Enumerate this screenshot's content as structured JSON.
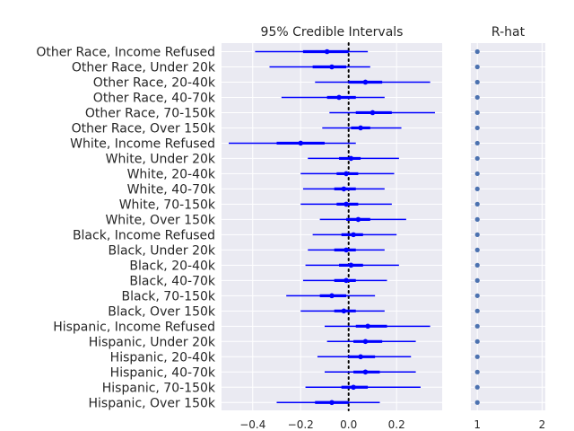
{
  "chart_data": [
    {
      "type": "forest",
      "title": "95% Credible Intervals",
      "xlim": [
        -0.53,
        0.39
      ],
      "xticks": [
        -0.4,
        -0.2,
        0.0,
        0.2
      ],
      "xtick_labels": [
        "−0.4",
        "−0.2",
        "0.0",
        "0.2"
      ],
      "grid": true,
      "reference_line": 0,
      "colors": {
        "interval": "#0000ff",
        "panel_bg": "#eaeaf2",
        "grid": "#ffffff",
        "refline": "#000000"
      },
      "categories": [
        "Other Race, Income Refused",
        "Other Race, Under 20k",
        "Other Race, 20-40k",
        "Other Race, 40-70k",
        "Other Race, 70-150k",
        "Other Race, Over 150k",
        "White, Income Refused",
        "White, Under 20k",
        "White, 20-40k",
        "White, 40-70k",
        "White, 70-150k",
        "White, Over 150k",
        "Black, Income Refused",
        "Black, Under 20k",
        "Black, 20-40k",
        "Black, 40-70k",
        "Black, 70-150k",
        "Black, Over 150k",
        "Hispanic, Income Refused",
        "Hispanic, Under 20k",
        "Hispanic, 20-40k",
        "Hispanic, 40-70k",
        "Hispanic, 70-150k",
        "Hispanic, Over 150k"
      ],
      "intervals": [
        {
          "lo": -0.39,
          "q25": -0.19,
          "mean": -0.09,
          "q75": 0.0,
          "hi": 0.08
        },
        {
          "lo": -0.33,
          "q25": -0.15,
          "mean": -0.07,
          "q75": -0.01,
          "hi": 0.09
        },
        {
          "lo": -0.14,
          "q25": 0.0,
          "mean": 0.07,
          "q75": 0.14,
          "hi": 0.34
        },
        {
          "lo": -0.28,
          "q25": -0.09,
          "mean": -0.04,
          "q75": 0.03,
          "hi": 0.15
        },
        {
          "lo": -0.08,
          "q25": 0.03,
          "mean": 0.1,
          "q75": 0.18,
          "hi": 0.36
        },
        {
          "lo": -0.11,
          "q25": 0.01,
          "mean": 0.05,
          "q75": 0.09,
          "hi": 0.22
        },
        {
          "lo": -0.5,
          "q25": -0.3,
          "mean": -0.2,
          "q75": -0.1,
          "hi": 0.03
        },
        {
          "lo": -0.17,
          "q25": -0.04,
          "mean": 0.01,
          "q75": 0.05,
          "hi": 0.21
        },
        {
          "lo": -0.2,
          "q25": -0.05,
          "mean": -0.01,
          "q75": 0.04,
          "hi": 0.19
        },
        {
          "lo": -0.19,
          "q25": -0.06,
          "mean": -0.02,
          "q75": 0.03,
          "hi": 0.15
        },
        {
          "lo": -0.2,
          "q25": -0.05,
          "mean": -0.01,
          "q75": 0.04,
          "hi": 0.18
        },
        {
          "lo": -0.12,
          "q25": -0.01,
          "mean": 0.04,
          "q75": 0.09,
          "hi": 0.24
        },
        {
          "lo": -0.15,
          "q25": -0.03,
          "mean": 0.02,
          "q75": 0.06,
          "hi": 0.2
        },
        {
          "lo": -0.17,
          "q25": -0.06,
          "mean": -0.01,
          "q75": 0.03,
          "hi": 0.15
        },
        {
          "lo": -0.18,
          "q25": -0.04,
          "mean": 0.01,
          "q75": 0.06,
          "hi": 0.21
        },
        {
          "lo": -0.19,
          "q25": -0.06,
          "mean": -0.01,
          "q75": 0.03,
          "hi": 0.16
        },
        {
          "lo": -0.26,
          "q25": -0.12,
          "mean": -0.07,
          "q75": -0.01,
          "hi": 0.11
        },
        {
          "lo": -0.2,
          "q25": -0.06,
          "mean": -0.02,
          "q75": 0.03,
          "hi": 0.15
        },
        {
          "lo": -0.1,
          "q25": 0.03,
          "mean": 0.08,
          "q75": 0.16,
          "hi": 0.34
        },
        {
          "lo": -0.09,
          "q25": 0.02,
          "mean": 0.07,
          "q75": 0.14,
          "hi": 0.28
        },
        {
          "lo": -0.13,
          "q25": 0.0,
          "mean": 0.05,
          "q75": 0.11,
          "hi": 0.26
        },
        {
          "lo": -0.1,
          "q25": 0.02,
          "mean": 0.07,
          "q75": 0.13,
          "hi": 0.28
        },
        {
          "lo": -0.18,
          "q25": -0.03,
          "mean": 0.02,
          "q75": 0.08,
          "hi": 0.3
        },
        {
          "lo": -0.3,
          "q25": -0.14,
          "mean": -0.07,
          "q75": 0.0,
          "hi": 0.13
        }
      ]
    },
    {
      "type": "scatter",
      "title": "R-hat",
      "xlim": [
        0.9,
        2.05
      ],
      "xticks": [
        1,
        2
      ],
      "xtick_labels": [
        "1",
        "2"
      ],
      "grid": true,
      "colors": {
        "point": "#4c72b0",
        "panel_bg": "#eaeaf2",
        "grid": "#ffffff"
      },
      "values": [
        1,
        1,
        1,
        1,
        1,
        1,
        1,
        1,
        1,
        1,
        1,
        1,
        1,
        1,
        1,
        1,
        1,
        1,
        1,
        1,
        1,
        1,
        1,
        1
      ]
    }
  ]
}
